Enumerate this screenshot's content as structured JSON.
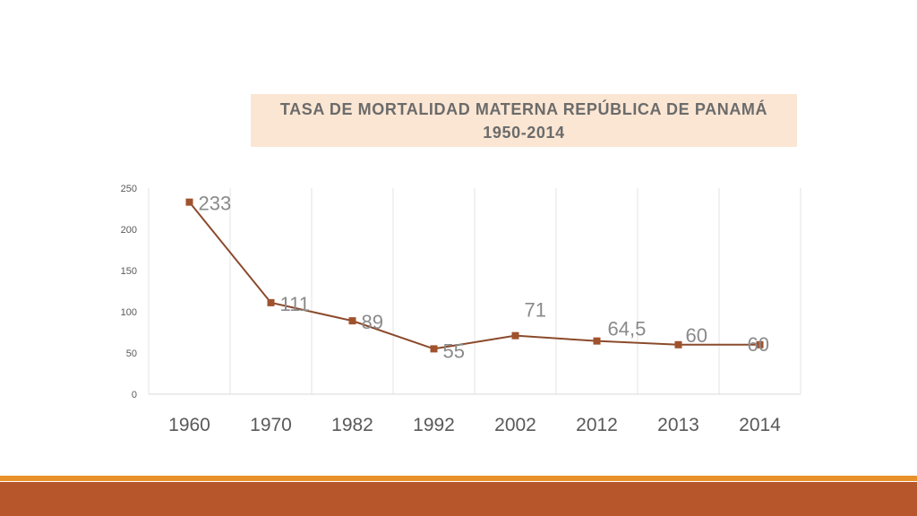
{
  "chart_data": {
    "type": "line",
    "title": "TASA DE MORTALIDAD MATERNA REPÚBLICA DE PANAMÁ",
    "subtitle": "1950-2014",
    "categories": [
      "1960",
      "1970",
      "1982",
      "1992",
      "2002",
      "2012",
      "2013",
      "2014"
    ],
    "series": [
      {
        "values": [
          233,
          111,
          89,
          55,
          71,
          64.5,
          60,
          60
        ],
        "data_labels": [
          "233",
          "111",
          "89",
          "55",
          "71",
          "64,5",
          "60",
          "60"
        ]
      }
    ],
    "ylim": [
      0,
      250
    ],
    "yticks": [
      0,
      50,
      100,
      150,
      200,
      250
    ],
    "grid": "vertical",
    "legend": "none",
    "xlabel": "",
    "ylabel": ""
  },
  "colors": {
    "series_line": "#8b4a2b",
    "marker": "#a0522d",
    "title_background": "#fbe6d3",
    "footer_stripe": "#e8912a",
    "footer_band": "#b8562b"
  }
}
